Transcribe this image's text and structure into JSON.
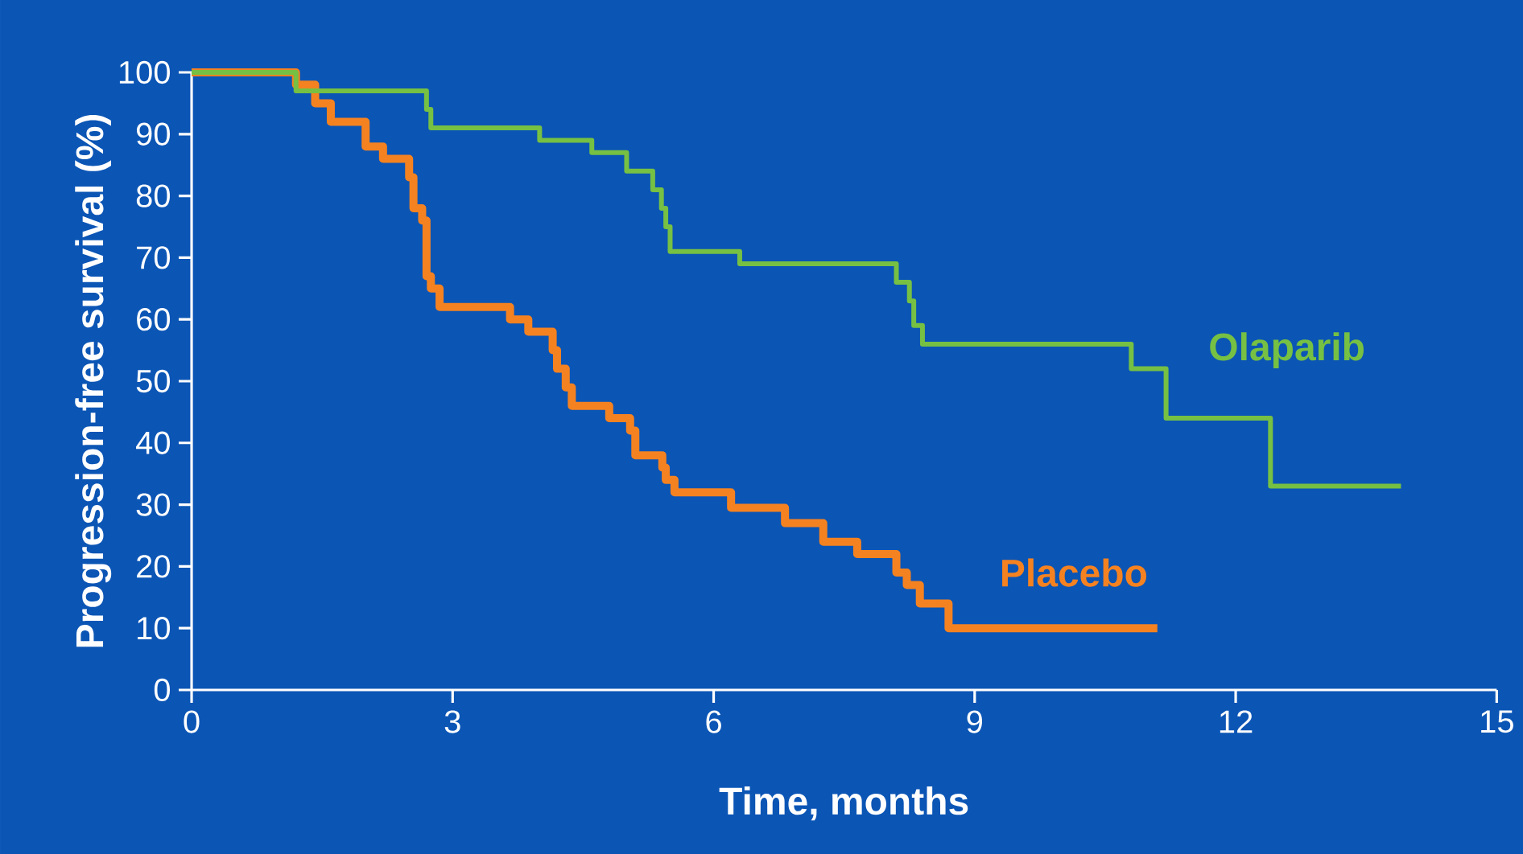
{
  "chart_data": {
    "type": "step",
    "xlabel": "Time, months",
    "ylabel": "Progression-free survival (%)",
    "xlim": [
      0,
      15
    ],
    "ylim": [
      0,
      100
    ],
    "xticks": [
      0,
      3,
      6,
      9,
      12,
      15
    ],
    "yticks": [
      0,
      10,
      20,
      30,
      40,
      50,
      60,
      70,
      80,
      90,
      100
    ],
    "grid": false,
    "legend": false,
    "marker": "none",
    "line_style": "solid",
    "series": [
      {
        "name": "Olaparib",
        "color": "#76c043",
        "x": [
          0,
          1.2,
          2.7,
          2.75,
          2.9,
          4.0,
          4.6,
          5.0,
          5.3,
          5.4,
          5.45,
          5.5,
          5.55,
          6.3,
          8.1,
          8.25,
          8.3,
          8.4,
          10.8,
          11.2,
          12.4,
          13.9
        ],
        "values": [
          100,
          97,
          94,
          91,
          91,
          89,
          87,
          84,
          81,
          78,
          75,
          71,
          71,
          69,
          66,
          63,
          59,
          56,
          52,
          44,
          33,
          33
        ]
      },
      {
        "name": "Placebo",
        "color": "#f58220",
        "x": [
          0,
          1.2,
          1.42,
          1.6,
          2.0,
          2.2,
          2.5,
          2.55,
          2.65,
          2.7,
          2.75,
          2.85,
          2.98,
          3.66,
          3.87,
          4.15,
          4.2,
          4.3,
          4.37,
          4.8,
          5.04,
          5.1,
          5.41,
          5.45,
          5.55,
          6.2,
          6.82,
          7.26,
          7.65,
          8.1,
          8.22,
          8.37,
          8.7,
          11.1
        ],
        "values": [
          100,
          98,
          95,
          92,
          88,
          86,
          83,
          78,
          76,
          67,
          65,
          62,
          62,
          60,
          58,
          55,
          52,
          49,
          46,
          44,
          42,
          38,
          36,
          34,
          32,
          29.5,
          27,
          24,
          22,
          19,
          17,
          14,
          10,
          10
        ]
      }
    ]
  }
}
